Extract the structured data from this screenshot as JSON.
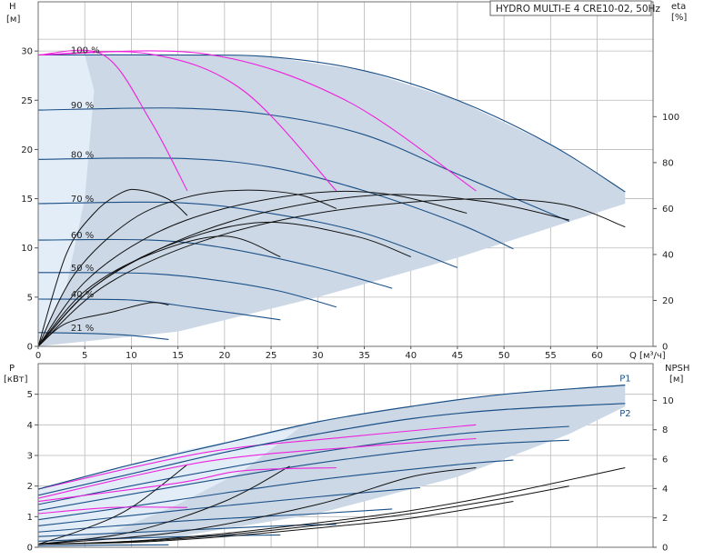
{
  "title": "HYDRO MULTI-E 4 CRE10-02, 50Hz",
  "colors": {
    "envelope": "#ccd8e6",
    "envelope_light": "#e6f0fa",
    "speed_curve": "#1a4f86",
    "system_curve": "#ee22dd",
    "eff_curve": "#111111"
  },
  "chart_data": [
    {
      "id": "head",
      "type": "line",
      "xlabel": "Q [м³/ч]",
      "ylabel_left": [
        "H",
        "[м]"
      ],
      "ylabel_right": [
        "eta",
        "[%]"
      ],
      "xlim": [
        0,
        66
      ],
      "ylim": [
        0,
        35
      ],
      "ylim_right": [
        0,
        150
      ],
      "x_ticks": [
        0,
        5,
        10,
        15,
        20,
        25,
        30,
        35,
        40,
        45,
        50,
        55,
        60
      ],
      "y_ticks": [
        0,
        5,
        10,
        15,
        20,
        25,
        30
      ],
      "y_right_ticks": [
        0,
        20,
        40,
        60,
        80,
        100
      ],
      "envelope": [
        [
          0,
          29.6
        ],
        [
          6,
          29.6
        ],
        [
          12,
          29.7
        ],
        [
          25,
          29.4
        ],
        [
          35,
          28
        ],
        [
          45,
          25
        ],
        [
          55,
          20.5
        ],
        [
          63,
          15.7
        ],
        [
          63,
          14.5
        ],
        [
          45,
          9
        ],
        [
          30,
          5
        ],
        [
          15,
          1.5
        ],
        [
          0,
          0
        ]
      ],
      "envelope_light": [
        [
          0,
          29.6
        ],
        [
          5,
          29.6
        ],
        [
          6,
          26
        ],
        [
          5,
          15
        ],
        [
          3,
          6
        ],
        [
          0,
          0
        ]
      ],
      "speed_curves": [
        {
          "label": "100 %",
          "points": [
            [
              0,
              29.6
            ],
            [
              15,
              29.6
            ],
            [
              25,
              29.4
            ],
            [
              35,
              28
            ],
            [
              45,
              25
            ],
            [
              55,
              20.5
            ],
            [
              63,
              15.7
            ]
          ]
        },
        {
          "label": "90 %",
          "points": [
            [
              0,
              24
            ],
            [
              15,
              24.2
            ],
            [
              25,
              23.5
            ],
            [
              35,
              21.5
            ],
            [
              45,
              17.5
            ],
            [
              57,
              12.7
            ]
          ]
        },
        {
          "label": "80 %",
          "points": [
            [
              0,
              19
            ],
            [
              15,
              19.1
            ],
            [
              25,
              18.2
            ],
            [
              35,
              15.8
            ],
            [
              45,
              12.5
            ],
            [
              51,
              9.9
            ]
          ]
        },
        {
          "label": "70 %",
          "points": [
            [
              0,
              14.5
            ],
            [
              15,
              14.6
            ],
            [
              25,
              13.5
            ],
            [
              35,
              11.5
            ],
            [
              45,
              8
            ]
          ]
        },
        {
          "label": "60 %",
          "points": [
            [
              0,
              10.8
            ],
            [
              12,
              10.8
            ],
            [
              20,
              10
            ],
            [
              30,
              8
            ],
            [
              38,
              5.9
            ]
          ]
        },
        {
          "label": "50 %",
          "points": [
            [
              0,
              7.5
            ],
            [
              12,
              7.4
            ],
            [
              20,
              6.6
            ],
            [
              26,
              5.6
            ],
            [
              32,
              4
            ]
          ]
        },
        {
          "label": "40 %",
          "points": [
            [
              0,
              4.8
            ],
            [
              10,
              4.7
            ],
            [
              17,
              3.9
            ],
            [
              26,
              2.7
            ]
          ]
        },
        {
          "label": "21 %",
          "points": [
            [
              0,
              1.4
            ],
            [
              6,
              1.3
            ],
            [
              10,
              1.1
            ],
            [
              14,
              0.7
            ]
          ]
        }
      ],
      "system_curves": [
        [
          [
            0,
            29.6
          ],
          [
            7,
            29.6
          ],
          [
            12,
            23
          ],
          [
            16,
            15.8
          ]
        ],
        [
          [
            0,
            29.6
          ],
          [
            12,
            29.7
          ],
          [
            22,
            26
          ],
          [
            32,
            15.8
          ]
        ],
        [
          [
            0,
            29.6
          ],
          [
            18,
            29.7
          ],
          [
            33,
            25
          ],
          [
            47,
            15.8
          ]
        ]
      ],
      "eff_curves": [
        [
          [
            0,
            0
          ],
          [
            3,
            40
          ],
          [
            6,
            58
          ],
          [
            9,
            67
          ],
          [
            11,
            68
          ],
          [
            14,
            64
          ],
          [
            16,
            57
          ]
        ],
        [
          [
            0,
            0
          ],
          [
            4,
            32
          ],
          [
            10,
            55
          ],
          [
            16,
            65
          ],
          [
            22,
            68
          ],
          [
            28,
            66
          ],
          [
            32,
            60
          ]
        ],
        [
          [
            0,
            0
          ],
          [
            5,
            28
          ],
          [
            12,
            48
          ],
          [
            20,
            60
          ],
          [
            30,
            67
          ],
          [
            38,
            66
          ],
          [
            46,
            58
          ]
        ],
        [
          [
            0,
            0
          ],
          [
            6,
            26
          ],
          [
            15,
            46
          ],
          [
            25,
            59
          ],
          [
            37,
            66
          ],
          [
            48,
            63
          ],
          [
            57,
            55
          ]
        ],
        [
          [
            0,
            0
          ],
          [
            7,
            26
          ],
          [
            17,
            45
          ],
          [
            30,
            58
          ],
          [
            45,
            64
          ],
          [
            56,
            62
          ],
          [
            63,
            52
          ]
        ],
        [
          [
            0,
            0
          ],
          [
            3,
            10
          ],
          [
            8,
            15
          ],
          [
            12,
            19
          ],
          [
            14,
            18
          ]
        ],
        [
          [
            0,
            0
          ],
          [
            5,
            24
          ],
          [
            12,
            40
          ],
          [
            20,
            48
          ],
          [
            26,
            39
          ]
        ],
        [
          [
            0,
            0
          ],
          [
            6,
            26
          ],
          [
            14,
            44
          ],
          [
            24,
            54
          ],
          [
            34,
            48
          ],
          [
            40,
            39
          ]
        ]
      ]
    },
    {
      "id": "power",
      "type": "line",
      "ylabel_left": [
        "P",
        "[кВт]"
      ],
      "ylabel_right": [
        "NPSH",
        "[м]"
      ],
      "xlim": [
        0,
        66
      ],
      "ylim": [
        0,
        6
      ],
      "ylim_right": [
        0,
        12.5
      ],
      "y_ticks": [
        0,
        1,
        2,
        3,
        4,
        5
      ],
      "y_right_ticks": [
        0,
        2,
        4,
        6,
        8,
        10
      ],
      "envelope": [
        [
          0,
          1.9
        ],
        [
          10,
          2.7
        ],
        [
          20,
          3.4
        ],
        [
          30,
          4.1
        ],
        [
          40,
          4.6
        ],
        [
          50,
          5
        ],
        [
          63,
          5.3
        ],
        [
          63,
          4.6
        ],
        [
          57,
          3.7
        ],
        [
          45,
          2.3
        ],
        [
          30,
          1.1
        ],
        [
          15,
          0.35
        ],
        [
          0,
          0.1
        ]
      ],
      "envelope_light": [
        [
          0,
          1.9
        ],
        [
          10,
          2.7
        ],
        [
          16,
          3.2
        ],
        [
          28,
          3.9
        ],
        [
          22,
          2.5
        ],
        [
          15,
          1.4
        ],
        [
          8,
          0.5
        ],
        [
          0,
          0.1
        ]
      ],
      "series": [
        {
          "name": "P1",
          "points": [
            [
              0,
              1.9
            ],
            [
              10,
              2.7
            ],
            [
              20,
              3.4
            ],
            [
              30,
              4.1
            ],
            [
              40,
              4.6
            ],
            [
              50,
              5
            ],
            [
              63,
              5.3
            ]
          ]
        },
        {
          "name": "P2",
          "points": [
            [
              0,
              1.7
            ],
            [
              10,
              2.4
            ],
            [
              20,
              3.1
            ],
            [
              30,
              3.7
            ],
            [
              40,
              4.2
            ],
            [
              50,
              4.5
            ],
            [
              63,
              4.7
            ]
          ]
        }
      ],
      "speed_curves": [
        [
          [
            0,
            1.4
          ],
          [
            15,
            2.3
          ],
          [
            30,
            3.1
          ],
          [
            45,
            3.7
          ],
          [
            57,
            3.95
          ]
        ],
        [
          [
            0,
            1.2
          ],
          [
            15,
            2
          ],
          [
            30,
            2.75
          ],
          [
            45,
            3.3
          ],
          [
            57,
            3.5
          ]
        ],
        [
          [
            0,
            0.9
          ],
          [
            15,
            1.55
          ],
          [
            30,
            2.2
          ],
          [
            45,
            2.7
          ],
          [
            51,
            2.85
          ]
        ],
        [
          [
            0,
            0.7
          ],
          [
            15,
            1.2
          ],
          [
            30,
            1.65
          ],
          [
            41,
            1.95
          ]
        ],
        [
          [
            0,
            0.5
          ],
          [
            15,
            0.85
          ],
          [
            30,
            1.1
          ],
          [
            38,
            1.25
          ]
        ],
        [
          [
            0,
            0.35
          ],
          [
            15,
            0.55
          ],
          [
            26,
            0.7
          ],
          [
            32,
            0.75
          ]
        ],
        [
          [
            0,
            0.2
          ],
          [
            10,
            0.3
          ],
          [
            20,
            0.38
          ],
          [
            26,
            0.4
          ]
        ],
        [
          [
            0,
            0.05
          ],
          [
            8,
            0.07
          ],
          [
            14,
            0.08
          ]
        ]
      ],
      "system_curves": [
        [
          [
            0,
            1.1
          ],
          [
            8,
            1.3
          ],
          [
            16,
            1.3
          ]
        ],
        [
          [
            0,
            1.5
          ],
          [
            15,
            2.1
          ],
          [
            22,
            2.5
          ],
          [
            32,
            2.6
          ]
        ],
        [
          [
            0,
            1.9
          ],
          [
            18,
            3.1
          ],
          [
            33,
            3.6
          ],
          [
            47,
            4
          ]
        ],
        [
          [
            0,
            1.6
          ],
          [
            18,
            2.8
          ],
          [
            35,
            3.3
          ],
          [
            47,
            3.55
          ]
        ]
      ],
      "npsh_curves": [
        [
          [
            0,
            0.1
          ],
          [
            10,
            0.2
          ],
          [
            20,
            0.45
          ],
          [
            30,
            0.8
          ],
          [
            40,
            1.2
          ],
          [
            50,
            1.75
          ],
          [
            63,
            2.6
          ]
        ],
        [
          [
            0,
            0.1
          ],
          [
            10,
            0.18
          ],
          [
            20,
            0.4
          ],
          [
            30,
            0.72
          ],
          [
            40,
            1.1
          ],
          [
            50,
            1.6
          ],
          [
            57,
            2
          ]
        ],
        [
          [
            0,
            0.1
          ],
          [
            10,
            0.16
          ],
          [
            20,
            0.35
          ],
          [
            30,
            0.63
          ],
          [
            40,
            0.95
          ],
          [
            51,
            1.5
          ]
        ],
        [
          [
            0,
            0.1
          ],
          [
            5,
            0.6
          ],
          [
            10,
            1.3
          ],
          [
            16,
            2.7
          ]
        ],
        [
          [
            0,
            0.1
          ],
          [
            10,
            0.5
          ],
          [
            20,
            1.5
          ],
          [
            27,
            2.65
          ]
        ],
        [
          [
            0,
            0.1
          ],
          [
            15,
            0.5
          ],
          [
            30,
            1.4
          ],
          [
            40,
            2.3
          ],
          [
            47,
            2.6
          ]
        ]
      ]
    }
  ]
}
